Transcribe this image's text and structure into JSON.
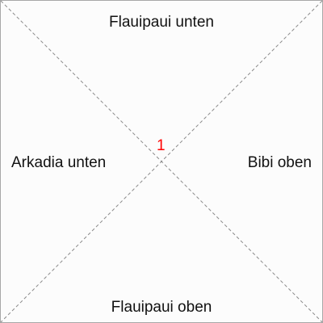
{
  "diagram": {
    "labels": {
      "top": "Flauipaui unten",
      "bottom": "Flauipaui oben",
      "left": "Arkadia unten",
      "right": "Bibi oben"
    },
    "center_mark": "1",
    "colors": {
      "center_mark": "#ff0000",
      "lines": "#8a8a8a",
      "border": "#a8a8a8"
    }
  }
}
